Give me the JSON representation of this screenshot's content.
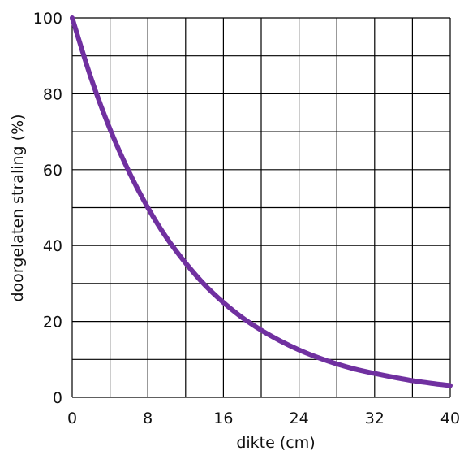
{
  "chart_data": {
    "type": "line",
    "title": "",
    "xlabel": "dikte (cm)",
    "ylabel": "doorgelaten straling (%)",
    "xlim": [
      0,
      40
    ],
    "ylim": [
      0,
      100
    ],
    "x_ticks": [
      0,
      8,
      16,
      24,
      32,
      40
    ],
    "y_ticks": [
      0,
      20,
      40,
      60,
      80,
      100
    ],
    "grid": true,
    "grid_x_step": 4,
    "grid_y_step": 10,
    "colors": {
      "line": "#7030A0",
      "grid": "#000000"
    },
    "series": [
      {
        "name": "",
        "x": [
          0,
          2,
          4,
          6,
          8,
          10,
          12,
          14,
          16,
          18,
          20,
          22,
          24,
          26,
          28,
          30,
          32,
          34,
          36,
          38,
          40
        ],
        "values": [
          100,
          84.1,
          70.7,
          59.5,
          50,
          42,
          35.4,
          29.7,
          25,
          21,
          17.7,
          14.9,
          12.5,
          10.5,
          8.8,
          7.4,
          6.3,
          5.3,
          4.4,
          3.7,
          3.1
        ]
      }
    ]
  }
}
